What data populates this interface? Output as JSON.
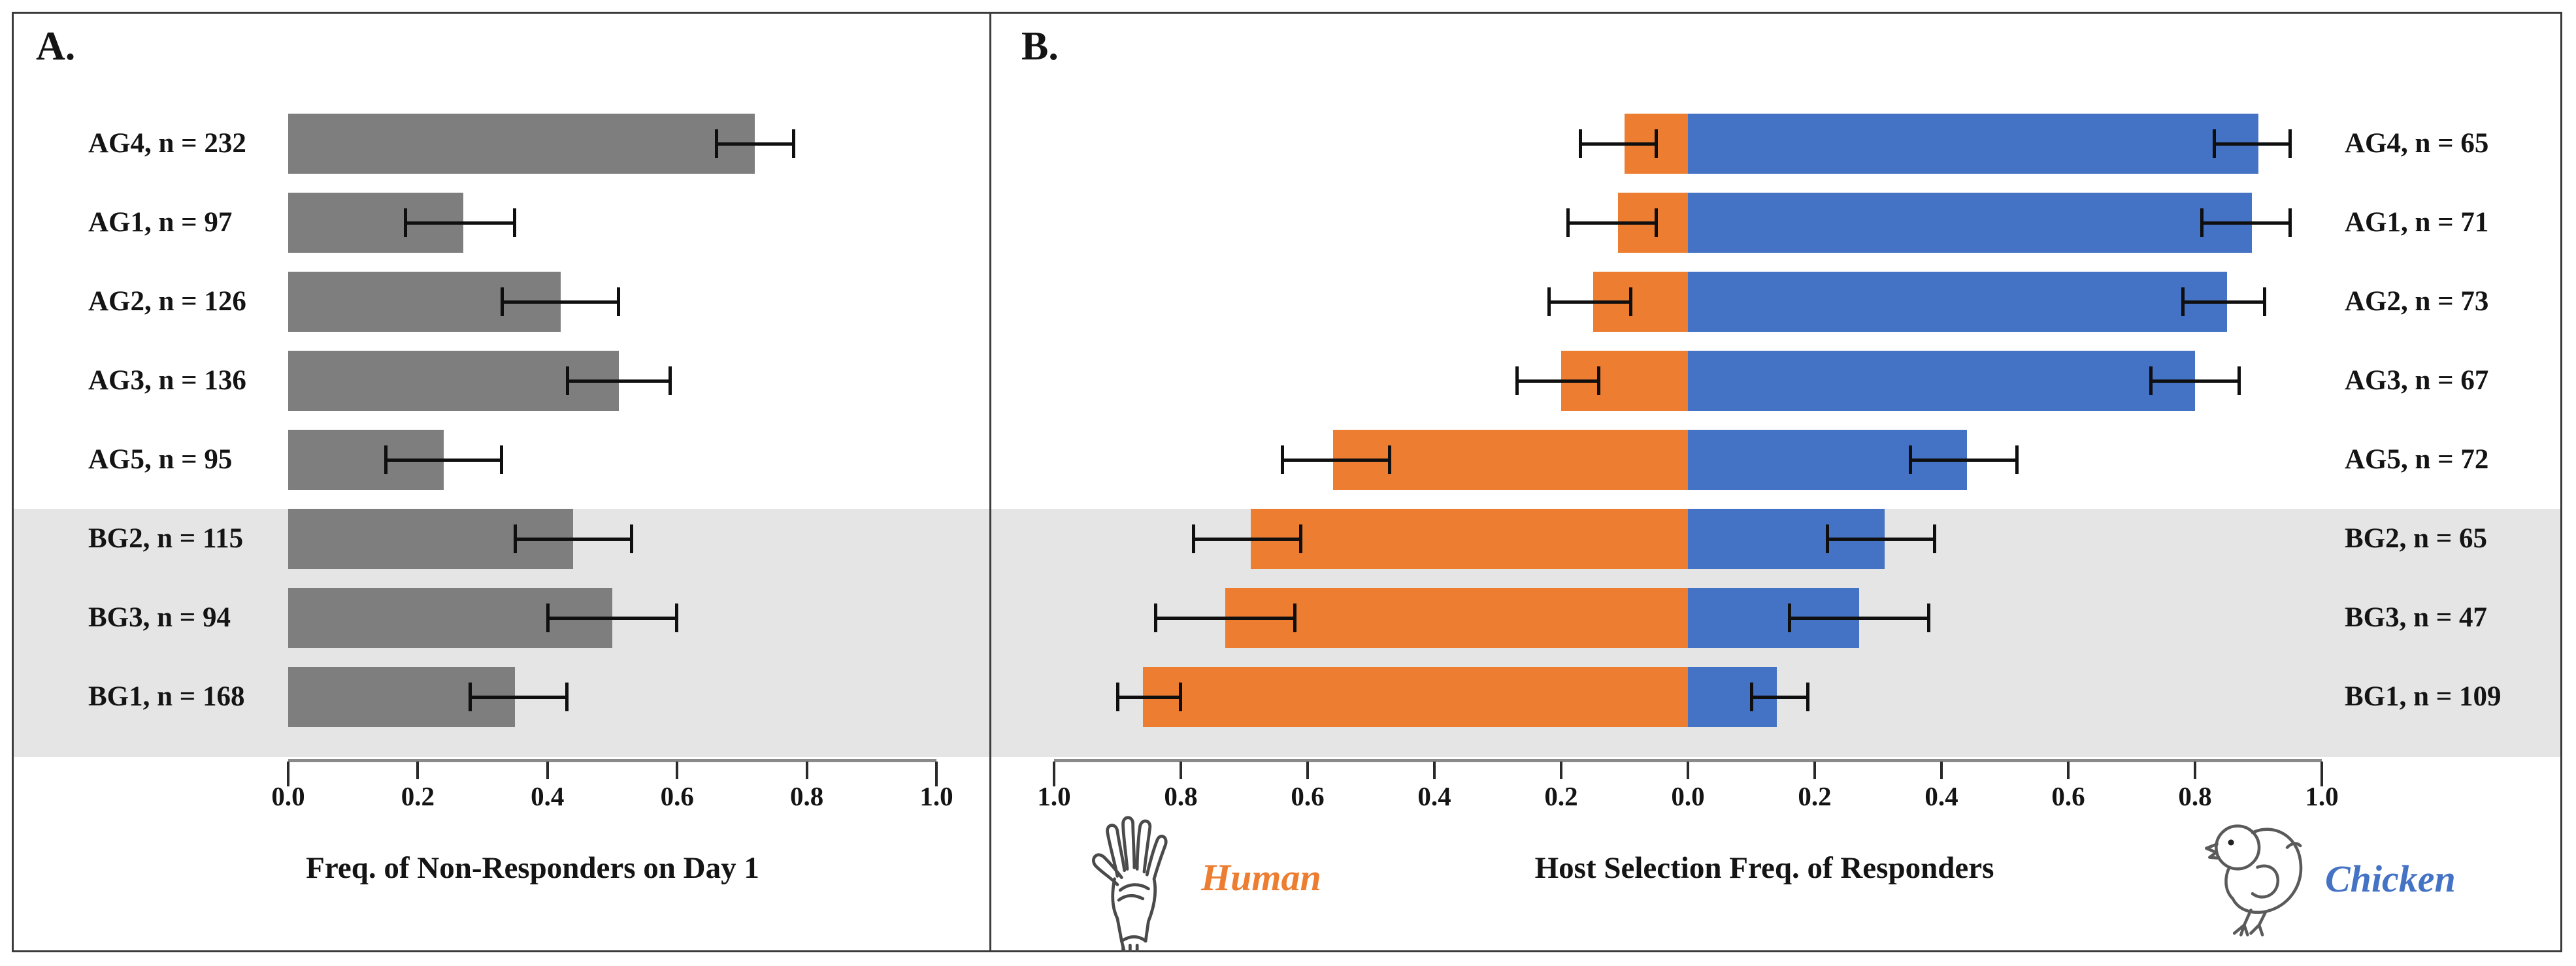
{
  "colors": {
    "nonresponder_bar_gray": "#7E7E7E",
    "human_orange": "#EC7D31",
    "chicken_blue": "#4472C4",
    "shaded_band_gray": "#E5E5E5",
    "axis_line_gray": "#8A8A8A",
    "frame_border": "#3B3B3B",
    "error_bar_black": "#0F0F0F"
  },
  "chart_data": [
    {
      "type": "bar",
      "title": "A.",
      "xlabel": "Freq. of Non-Responders on Day 1",
      "orientation": "horizontal",
      "xlim": [
        0.0,
        1.0
      ],
      "x_ticks": [
        0.0,
        0.2,
        0.4,
        0.6,
        0.8,
        1.0
      ],
      "x_tick_labels": [
        "0.0",
        "0.2",
        "0.4",
        "0.6",
        "0.8",
        "1.0"
      ],
      "grid": false,
      "legend": "none",
      "bar_color": "#7E7E7E",
      "categories": [
        "AG4, n = 232",
        "AG1, n = 97",
        "AG2,  n = 126",
        "AG3, n = 136",
        "AG5, n = 95",
        "BG2, n = 115",
        "BG3, n = 94",
        "BG1, n = 168"
      ],
      "values": [
        0.72,
        0.27,
        0.42,
        0.51,
        0.24,
        0.44,
        0.5,
        0.35
      ],
      "ci_low": [
        0.66,
        0.18,
        0.33,
        0.43,
        0.15,
        0.35,
        0.4,
        0.28
      ],
      "ci_high": [
        0.78,
        0.35,
        0.51,
        0.59,
        0.33,
        0.53,
        0.6,
        0.43
      ],
      "shaded_categories": [
        "BG2, n = 115",
        "BG3, n = 94",
        "BG1, n = 168"
      ]
    },
    {
      "type": "bar",
      "title": "B.",
      "xlabel": "Host Selection Freq. of Responders",
      "orientation": "horizontal",
      "diverging": true,
      "xlim": [
        -1.0,
        1.0
      ],
      "x_ticks": [
        -1.0,
        -0.8,
        -0.6,
        -0.4,
        -0.2,
        0.0,
        0.2,
        0.4,
        0.6,
        0.8,
        1.0
      ],
      "x_tick_labels": [
        "1.0",
        "0.8",
        "0.6",
        "0.4",
        "0.2",
        "0.0",
        "0.2",
        "0.4",
        "0.6",
        "0.8",
        "1.0"
      ],
      "grid": false,
      "legend": "icon-endpoints",
      "categories": [
        "AG4, n = 65",
        "AG1, n = 71",
        "AG2,  n = 73",
        "AG3, n = 67",
        "AG5, n = 72",
        "BG2, n = 65",
        "BG3, n = 47",
        "BG1, n = 109"
      ],
      "series": [
        {
          "name": "Human",
          "direction": "left",
          "color": "#EC7D31",
          "values": [
            0.1,
            0.11,
            0.15,
            0.2,
            0.56,
            0.69,
            0.73,
            0.86
          ],
          "ci_low": [
            0.05,
            0.05,
            0.09,
            0.14,
            0.47,
            0.61,
            0.62,
            0.8
          ],
          "ci_high": [
            0.17,
            0.19,
            0.22,
            0.27,
            0.64,
            0.78,
            0.84,
            0.9
          ]
        },
        {
          "name": "Chicken",
          "direction": "right",
          "color": "#4472C4",
          "values": [
            0.9,
            0.89,
            0.85,
            0.8,
            0.44,
            0.31,
            0.27,
            0.14
          ],
          "ci_low": [
            0.83,
            0.81,
            0.78,
            0.73,
            0.35,
            0.22,
            0.16,
            0.1
          ],
          "ci_high": [
            0.95,
            0.95,
            0.91,
            0.87,
            0.52,
            0.39,
            0.38,
            0.19
          ]
        }
      ],
      "shaded_categories": [
        "BG2, n = 65",
        "BG3, n = 47",
        "BG1, n = 109"
      ]
    }
  ]
}
